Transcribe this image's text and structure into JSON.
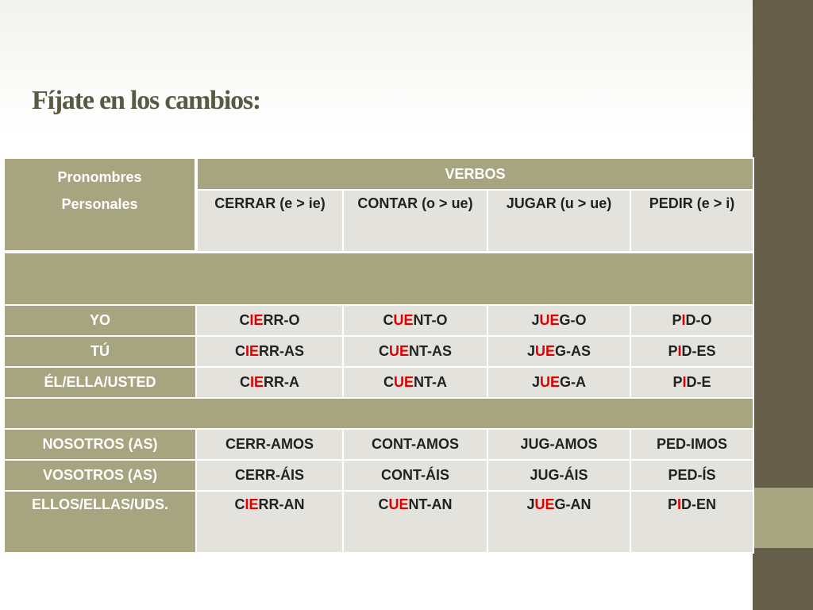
{
  "title": "Fíjate en los cambios:",
  "header": {
    "pronouns_line1": "Pronombres",
    "pronouns_line2": "Personales",
    "verbs_label": "VERBOS",
    "verbs": [
      "CERRAR (e > ie)",
      "CONTAR (o > ue)",
      "JUGAR (u > ue)",
      "PEDIR (e > i)"
    ]
  },
  "groups": [
    {
      "rows": [
        {
          "pronoun": "YO",
          "cells": [
            [
              "C",
              "IE",
              "RR-O"
            ],
            [
              "C",
              "UE",
              "NT-O"
            ],
            [
              "J",
              "UE",
              "G-O"
            ],
            [
              "P",
              "I",
              "D-O"
            ]
          ]
        },
        {
          "pronoun": "TÚ",
          "cells": [
            [
              "C",
              "IE",
              "RR-AS"
            ],
            [
              "C",
              "UE",
              "NT-AS"
            ],
            [
              "J",
              "UE",
              "G-AS"
            ],
            [
              "P",
              "I",
              "D-ES"
            ]
          ]
        },
        {
          "pronoun": "ÉL/ELLA/USTED",
          "cells": [
            [
              "C",
              "IE",
              "RR-A"
            ],
            [
              "C",
              "UE",
              "NT-A"
            ],
            [
              "J",
              "UE",
              "G-A"
            ],
            [
              "P",
              "I",
              "D-E"
            ]
          ]
        }
      ]
    },
    {
      "rows": [
        {
          "pronoun": "NOSOTROS (AS)",
          "cells": [
            [
              "CERR-AMOS",
              "",
              ""
            ],
            [
              "CONT-AMOS",
              "",
              ""
            ],
            [
              "JUG-AMOS",
              "",
              ""
            ],
            [
              "PED-IMOS",
              "",
              ""
            ]
          ]
        },
        {
          "pronoun": "VOSOTROS (AS)",
          "cells": [
            [
              "CERR-ÁIS",
              "",
              ""
            ],
            [
              "CONT-ÁIS",
              "",
              ""
            ],
            [
              "JUG-ÁIS",
              "",
              ""
            ],
            [
              "PED-ÍS",
              "",
              ""
            ]
          ]
        },
        {
          "pronoun": "ELLOS/ELLAS/UDS.",
          "cells": [
            [
              "C",
              "IE",
              "RR-AN"
            ],
            [
              "C",
              "UE",
              "NT-AN"
            ],
            [
              "J",
              "UE",
              "G-AN"
            ],
            [
              "P",
              "I",
              "D-EN"
            ]
          ]
        }
      ]
    }
  ],
  "colors": {
    "olive": "#a7a57f",
    "light_gray": "#e3e2dd",
    "sidebar": "#655e49",
    "highlight": "#e10000",
    "title": "#5a5a44"
  }
}
